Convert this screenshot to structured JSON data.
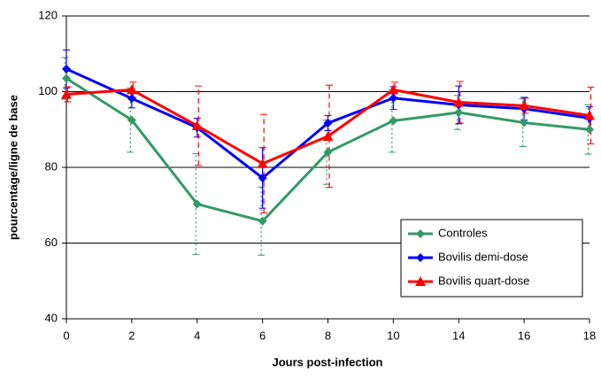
{
  "chart_data": {
    "type": "line",
    "x_label": "Jours post-infection",
    "y_label": "pourcentage/ligne de base",
    "categories": [
      0,
      2,
      4,
      6,
      8,
      10,
      14,
      16,
      18
    ],
    "ylim": [
      40,
      120
    ],
    "yticks": [
      40,
      60,
      80,
      100,
      120
    ],
    "grid": true,
    "legend": "lower right",
    "series": [
      {
        "name": "Controles",
        "color": "#339966",
        "marker": "diamond",
        "error_style": "dotted",
        "values": [
          103.5,
          92.5,
          70.3,
          65.8,
          84,
          92.3,
          94.5,
          91.8,
          90
        ],
        "errors": [
          5.5,
          8.5,
          13.3,
          9,
          8.5,
          8.3,
          4.5,
          6.3,
          6.5
        ]
      },
      {
        "name": "Bovilis demi-dose",
        "color": "#0000ff",
        "marker": "diamond",
        "error_style": "solid",
        "values": [
          106,
          98.2,
          90.5,
          77.2,
          91.7,
          98.3,
          96.5,
          95.5,
          93
        ],
        "errors": [
          5,
          2.5,
          2.5,
          8,
          2,
          3,
          5,
          3,
          3
        ]
      },
      {
        "name": "Bovilis quart-dose",
        "color": "#ff0000",
        "marker": "triangle",
        "error_style": "dashed",
        "values": [
          99.3,
          100.5,
          91,
          81,
          88.2,
          100.5,
          97.2,
          96.3,
          93.7
        ],
        "errors": [
          2,
          2,
          10.5,
          13,
          13.5,
          2,
          5.5,
          2,
          7.5
        ]
      }
    ]
  }
}
